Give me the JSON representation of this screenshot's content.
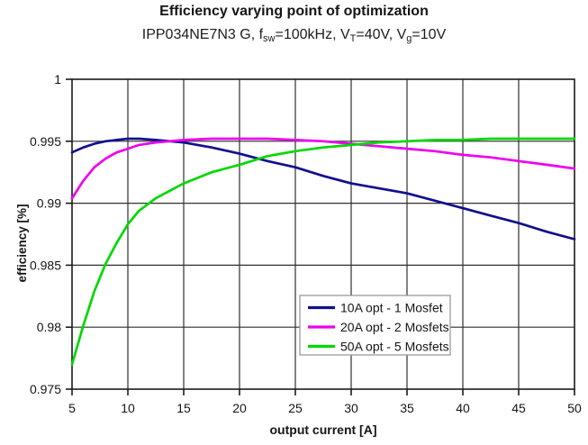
{
  "page": {
    "title": "Efficiency varying point of optimization",
    "subtitle_parts": [
      {
        "t": "IPP034NE7N3 G, f"
      },
      {
        "t": "sw"
      },
      {
        "t": "=100kHz, V"
      },
      {
        "t": "T"
      },
      {
        "t": "=40V, V"
      },
      {
        "t": "g"
      },
      {
        "t": "=10V"
      }
    ]
  },
  "chart_data": {
    "type": "line",
    "title": "Efficiency varying point of optimization",
    "subtitle": "IPP034NE7N3 G, fsw=100kHz, VT=40V, Vg=10V",
    "xlabel": "output current [A]",
    "ylabel": "efficiency [%]",
    "xlim": [
      5,
      50
    ],
    "ylim": [
      0.975,
      1.0
    ],
    "x_ticks": [
      5,
      10,
      15,
      20,
      25,
      30,
      35,
      40,
      45,
      50
    ],
    "x_tick_labels": [
      "5",
      "10",
      "15",
      "20",
      "25",
      "30",
      "35",
      "40",
      "45",
      "50"
    ],
    "y_ticks": [
      1,
      0.995,
      0.99,
      0.985,
      0.98,
      0.975
    ],
    "y_tick_labels": [
      "1",
      "0.995",
      "0.99",
      "0.985",
      "0.98",
      "0.975"
    ],
    "grid": true,
    "legend": {
      "position": "inside-bottom-center",
      "background": "#ffffff",
      "border_color": "#9a9a9a"
    },
    "axis_color": "#1a1a1a",
    "grid_color": "#2f2f2f",
    "x": [
      5,
      6,
      7,
      8,
      9,
      10,
      11,
      12.5,
      15,
      17.5,
      20,
      22.5,
      25,
      27.5,
      30,
      32.5,
      35,
      37.5,
      40,
      42.5,
      45,
      47.5,
      50
    ],
    "series": [
      {
        "name": "10A opt - 1 Mosfet",
        "color": "#10108E",
        "values": [
          0.9941,
          0.9945,
          0.9948,
          0.995,
          0.9951,
          0.9952,
          0.9952,
          0.9951,
          0.9949,
          0.9945,
          0.994,
          0.9934,
          0.9929,
          0.9922,
          0.9916,
          0.9912,
          0.9908,
          0.9902,
          0.9896,
          0.989,
          0.9884,
          0.9877,
          0.9871
        ]
      },
      {
        "name": "20A opt - 2 Mosfets",
        "color": "#EE00EE",
        "values": [
          0.9904,
          0.9918,
          0.9929,
          0.9936,
          0.9941,
          0.9944,
          0.9947,
          0.9949,
          0.9951,
          0.9952,
          0.9952,
          0.9952,
          0.9951,
          0.995,
          0.9948,
          0.9946,
          0.9944,
          0.9942,
          0.9939,
          0.9937,
          0.9934,
          0.9931,
          0.9928
        ]
      },
      {
        "name": "50A opt - 5 Mosfets",
        "color": "#00D800",
        "values": [
          0.977,
          0.9801,
          0.9829,
          0.9851,
          0.9868,
          0.9883,
          0.9894,
          0.9904,
          0.9916,
          0.9925,
          0.9931,
          0.9938,
          0.9942,
          0.9945,
          0.9947,
          0.9949,
          0.995,
          0.9951,
          0.9951,
          0.9952,
          0.9952,
          0.9952,
          0.9952
        ]
      }
    ]
  }
}
